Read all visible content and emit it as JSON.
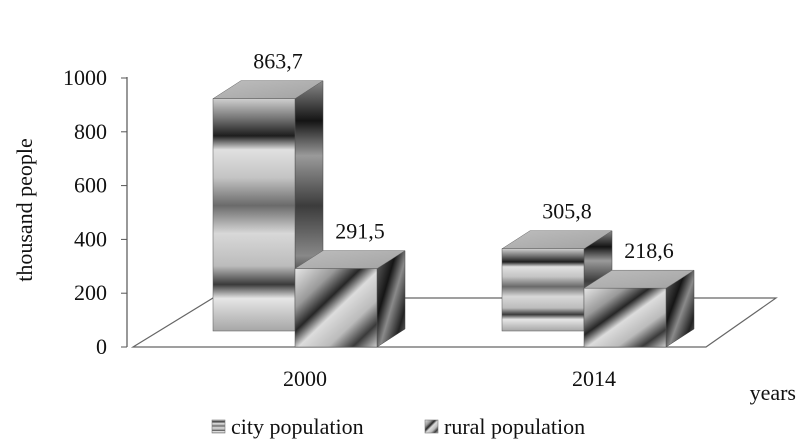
{
  "chart_data": {
    "type": "bar",
    "style": "3d-clustered-column",
    "categories": [
      "2000",
      "2014"
    ],
    "series": [
      {
        "name": "city population",
        "values": [
          863.7,
          305.8
        ],
        "labels": [
          "863,7",
          "305,8"
        ],
        "pattern": "horizontal-stripes"
      },
      {
        "name": "rural population",
        "values": [
          291.5,
          218.6
        ],
        "labels": [
          "291,5",
          "218,6"
        ],
        "pattern": "diagonal-stripes"
      }
    ],
    "ylabel": "thousand people",
    "xlabel": "years",
    "ylim": [
      0,
      1000
    ],
    "yticks": [
      "0",
      "200",
      "400",
      "600",
      "800",
      "1000"
    ],
    "grid": false,
    "legend_position": "bottom"
  }
}
